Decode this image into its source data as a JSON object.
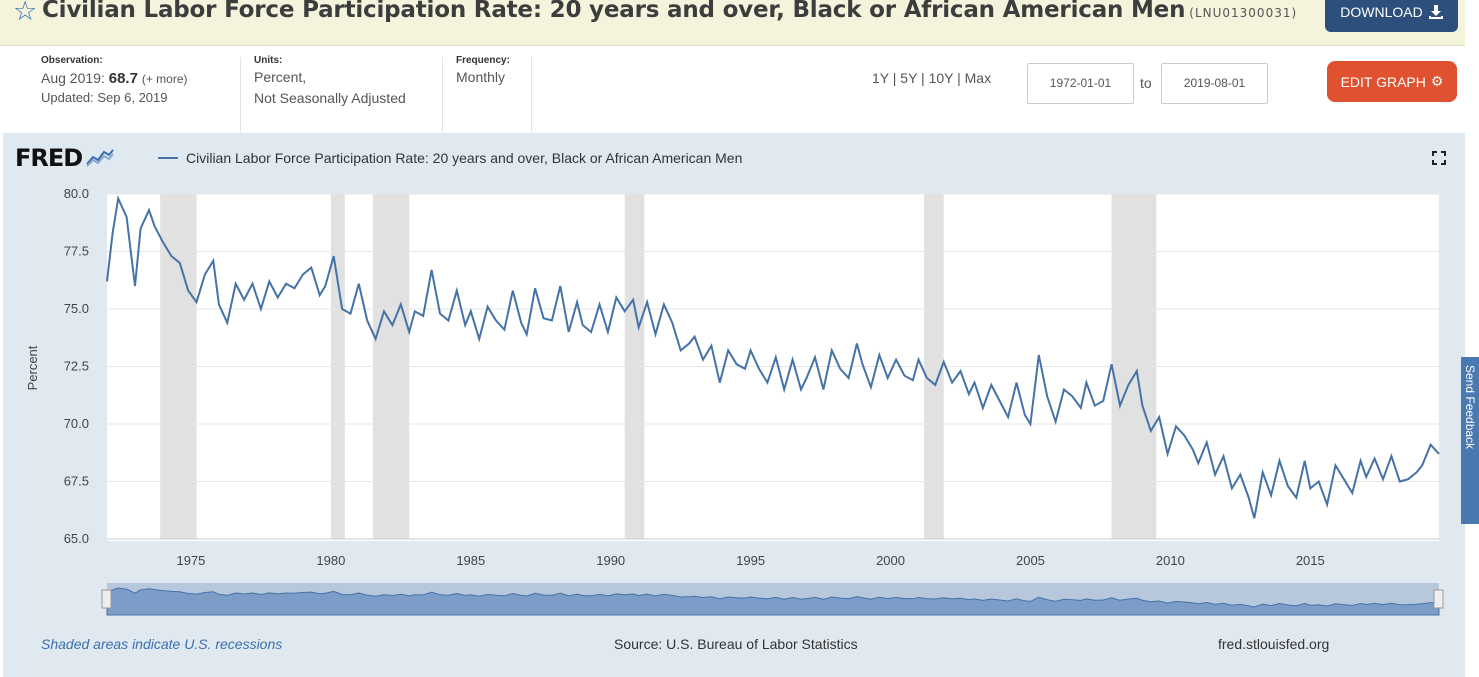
{
  "header": {
    "title": "Civilian Labor Force Participation Rate: 20 years and over, Black or African American Men",
    "series_id": "(LNU01300031)",
    "download_label": "DOWNLOAD"
  },
  "meta": {
    "observation_label": "Observation:",
    "observation_date": "Aug 2019:",
    "observation_value": "68.7",
    "observation_more": "(+ more)",
    "updated": "Updated: Sep 6, 2019",
    "units_label": "Units:",
    "units_line1": "Percent,",
    "units_line2": "Not Seasonally Adjusted",
    "frequency_label": "Frequency:",
    "frequency_value": "Monthly"
  },
  "controls": {
    "ranges": "1Y | 5Y | 10Y | Max",
    "start_date": "1972-01-01",
    "to_label": "to",
    "end_date": "2019-08-01",
    "edit_label": "EDIT GRAPH"
  },
  "graph": {
    "logo": "FRED",
    "legend_label": "Civilian Labor Force Participation Rate: 20 years and over, Black or African American Men",
    "footer_left": "Shaded areas indicate U.S. recessions",
    "footer_source": "Source: U.S. Bureau of Labor Statistics",
    "footer_url": "fred.stlouisfed.org",
    "side_tab": "Send Feedback"
  },
  "colors": {
    "line": "#4572a7",
    "recession": "#e1e1e1",
    "panel": "#e1e9f0",
    "download_button": "#2c4f7c",
    "edit_button": "#e0512f"
  },
  "chart_data": {
    "type": "line",
    "ylabel": "Percent",
    "ylim": [
      65.0,
      80.0
    ],
    "xlim": [
      1972.0,
      2019.6
    ],
    "yticks": [
      "65.0",
      "67.5",
      "70.0",
      "72.5",
      "75.0",
      "77.5",
      "80.0"
    ],
    "xticks": [
      "1975",
      "1980",
      "1985",
      "1990",
      "1995",
      "2000",
      "2005",
      "2010",
      "2015"
    ],
    "recessions": [
      [
        1973.9,
        1975.2
      ],
      [
        1980.0,
        1980.5
      ],
      [
        1981.5,
        1982.8
      ],
      [
        1990.5,
        1991.2
      ],
      [
        2001.2,
        2001.9
      ],
      [
        2007.9,
        2009.5
      ]
    ],
    "series": [
      {
        "name": "Civilian Labor Force Participation Rate: 20 years and over, Black or African American Men",
        "x": [
          1972.0,
          1972.2,
          1972.4,
          1972.7,
          1973.0,
          1973.2,
          1973.5,
          1973.7,
          1974.0,
          1974.3,
          1974.6,
          1974.9,
          1975.2,
          1975.5,
          1975.8,
          1976.0,
          1976.3,
          1976.6,
          1976.9,
          1977.2,
          1977.5,
          1977.8,
          1978.1,
          1978.4,
          1978.7,
          1979.0,
          1979.3,
          1979.6,
          1979.8,
          1980.1,
          1980.4,
          1980.7,
          1981.0,
          1981.3,
          1981.6,
          1981.9,
          1982.2,
          1982.5,
          1982.8,
          1983.0,
          1983.3,
          1983.6,
          1983.9,
          1984.2,
          1984.5,
          1984.8,
          1985.0,
          1985.3,
          1985.6,
          1985.9,
          1986.2,
          1986.5,
          1986.8,
          1987.0,
          1987.3,
          1987.6,
          1987.9,
          1988.2,
          1988.5,
          1988.8,
          1989.0,
          1989.3,
          1989.6,
          1989.9,
          1990.2,
          1990.5,
          1990.8,
          1991.0,
          1991.3,
          1991.6,
          1991.9,
          1992.2,
          1992.5,
          1992.8,
          1993.0,
          1993.3,
          1993.6,
          1993.9,
          1994.2,
          1994.5,
          1994.8,
          1995.0,
          1995.3,
          1995.6,
          1995.9,
          1996.2,
          1996.5,
          1996.8,
          1997.0,
          1997.3,
          1997.6,
          1997.9,
          1998.2,
          1998.5,
          1998.8,
          1999.0,
          1999.3,
          1999.6,
          1999.9,
          2000.2,
          2000.5,
          2000.8,
          2001.0,
          2001.3,
          2001.6,
          2001.9,
          2002.2,
          2002.5,
          2002.8,
          2003.0,
          2003.3,
          2003.6,
          2003.9,
          2004.2,
          2004.5,
          2004.8,
          2005.0,
          2005.3,
          2005.6,
          2005.9,
          2006.2,
          2006.5,
          2006.8,
          2007.0,
          2007.3,
          2007.6,
          2007.9,
          2008.2,
          2008.5,
          2008.8,
          2009.0,
          2009.3,
          2009.6,
          2009.9,
          2010.2,
          2010.5,
          2010.8,
          2011.0,
          2011.3,
          2011.6,
          2011.9,
          2012.2,
          2012.5,
          2012.8,
          2013.0,
          2013.3,
          2013.6,
          2013.9,
          2014.2,
          2014.5,
          2014.8,
          2015.0,
          2015.3,
          2015.6,
          2015.9,
          2016.2,
          2016.5,
          2016.8,
          2017.0,
          2017.3,
          2017.6,
          2017.9,
          2018.2,
          2018.5,
          2018.8,
          2019.0,
          2019.3,
          2019.6
        ],
        "values": [
          76.2,
          78.3,
          79.8,
          79.0,
          76.0,
          78.5,
          79.3,
          78.6,
          77.9,
          77.3,
          77.0,
          75.8,
          75.3,
          76.5,
          77.1,
          75.2,
          74.4,
          76.1,
          75.4,
          76.1,
          75.0,
          76.2,
          75.5,
          76.1,
          75.9,
          76.5,
          76.8,
          75.6,
          76.0,
          77.3,
          75.0,
          74.8,
          76.1,
          74.5,
          73.7,
          74.9,
          74.3,
          75.2,
          74.0,
          74.9,
          74.7,
          76.7,
          74.8,
          74.5,
          75.8,
          74.3,
          74.9,
          73.7,
          75.1,
          74.5,
          74.1,
          75.8,
          74.4,
          73.9,
          75.9,
          74.6,
          74.5,
          76.0,
          74.0,
          75.3,
          74.3,
          74.0,
          75.2,
          74.0,
          75.5,
          74.9,
          75.4,
          74.2,
          75.3,
          73.9,
          75.2,
          74.4,
          73.2,
          73.5,
          73.8,
          72.8,
          73.4,
          71.8,
          73.2,
          72.6,
          72.4,
          73.2,
          72.4,
          71.8,
          72.9,
          71.5,
          72.8,
          71.5,
          72.0,
          72.9,
          71.5,
          73.2,
          72.4,
          72.0,
          73.5,
          72.6,
          71.6,
          73.0,
          72.0,
          72.8,
          72.1,
          71.9,
          72.8,
          72.0,
          71.7,
          72.7,
          71.8,
          72.3,
          71.3,
          71.8,
          70.7,
          71.7,
          71.0,
          70.3,
          71.8,
          70.4,
          70.0,
          73.0,
          71.2,
          70.1,
          71.5,
          71.2,
          70.7,
          71.8,
          70.8,
          71.0,
          72.6,
          70.8,
          71.7,
          72.3,
          70.8,
          69.7,
          70.3,
          68.7,
          69.9,
          69.5,
          68.9,
          68.3,
          69.2,
          67.8,
          68.6,
          67.2,
          67.8,
          66.8,
          65.9,
          67.9,
          66.9,
          68.4,
          67.3,
          66.8,
          68.4,
          67.2,
          67.5,
          66.5,
          68.2,
          67.6,
          67.0,
          68.4,
          67.7,
          68.5,
          67.6,
          68.6,
          67.5,
          67.6,
          67.9,
          68.2,
          69.1,
          68.7
        ]
      }
    ]
  }
}
